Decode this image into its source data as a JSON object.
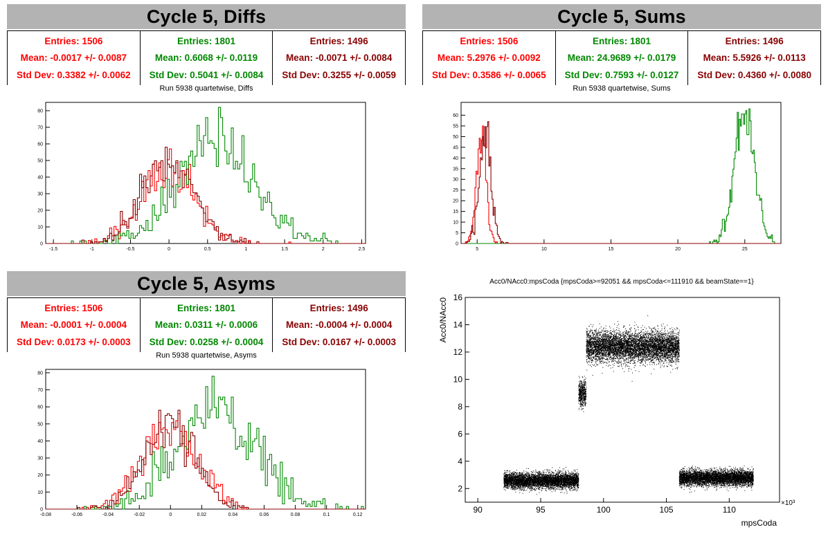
{
  "colors": {
    "red": "#ff0000",
    "green": "#008800",
    "darkred": "#880000",
    "banner": "#b3b3b3"
  },
  "panels": {
    "diffs": {
      "banner": "Cycle 5, Diffs",
      "stats": [
        {
          "entries": "Entries: 1506",
          "mean": "Mean: -0.0017 +/- 0.0087",
          "stddev": "Std Dev: 0.3382 +/- 0.0062"
        },
        {
          "entries": "Entries: 1801",
          "mean": "Mean: 0.6068 +/- 0.0119",
          "stddev": "Std Dev: 0.5041 +/- 0.0084"
        },
        {
          "entries": "Entries: 1496",
          "mean": "Mean: -0.0071 +/- 0.0084",
          "stddev": "Std Dev: 0.3255 +/- 0.0059"
        }
      ],
      "title": "Run 5938 quartetwise, Diffs"
    },
    "sums": {
      "banner": "Cycle 5, Sums",
      "stats": [
        {
          "entries": "Entries: 1506",
          "mean": "Mean: 5.2976 +/- 0.0092",
          "stddev": "Std Dev: 0.3586 +/- 0.0065"
        },
        {
          "entries": "Entries: 1801",
          "mean": "Mean: 24.9689 +/- 0.0179",
          "stddev": "Std Dev: 0.7593 +/- 0.0127"
        },
        {
          "entries": "Entries: 1496",
          "mean": "Mean: 5.5926 +/- 0.0113",
          "stddev": "Std Dev: 0.4360 +/- 0.0080"
        }
      ],
      "title": "Run 5938 quartetwise, Sums"
    },
    "asyms": {
      "banner": "Cycle 5, Asyms",
      "stats": [
        {
          "entries": "Entries: 1506",
          "mean": "Mean: -0.0001 +/- 0.0004",
          "stddev": "Std Dev: 0.0173 +/- 0.0003"
        },
        {
          "entries": "Entries: 1801",
          "mean": "Mean: 0.0311 +/- 0.0006",
          "stddev": "Std Dev: 0.0258 +/- 0.0004"
        },
        {
          "entries": "Entries: 1496",
          "mean": "Mean: -0.0004 +/- 0.0004",
          "stddev": "Std Dev: 0.0167 +/- 0.0003"
        }
      ],
      "title": "Run 5938 quartetwise, Asyms"
    },
    "scatter": {
      "title": "Acc0/NAcc0:mpsCoda {mpsCoda>=92051 && mpsCoda<=111910 && beamState==1}"
    }
  },
  "chart_data": [
    {
      "type": "histogram",
      "id": "diffs",
      "title": "Run 5938 quartetwise, Diffs",
      "xlim": [
        -1.6,
        2.55
      ],
      "ylim": [
        0,
        85
      ],
      "xticks": [
        -1.5,
        -1,
        -0.5,
        0,
        0.5,
        1,
        1.5,
        2,
        2.5
      ],
      "xtick_labels": [
        "-1.5",
        "-1",
        "-0.5",
        "0",
        "0.5",
        "1",
        "1.5",
        "2",
        "2.5"
      ],
      "yticks": [
        0,
        10,
        20,
        30,
        40,
        50,
        60,
        70,
        80
      ],
      "ytick_labels": [
        "0",
        "10",
        "20",
        "30",
        "40",
        "50",
        "60",
        "70",
        "80"
      ],
      "series": [
        {
          "color": "red",
          "entries": 1506,
          "mean": -0.0017,
          "std": 0.3382,
          "peak": 57
        },
        {
          "color": "green",
          "entries": 1801,
          "mean": 0.6068,
          "std": 0.5041,
          "peak": 82
        },
        {
          "color": "darkred",
          "entries": 1496,
          "mean": -0.0071,
          "std": 0.3255,
          "peak": 58
        }
      ]
    },
    {
      "type": "histogram",
      "id": "sums",
      "title": "Run 5938 quartetwise, Sums",
      "xlim": [
        3.8,
        27.7
      ],
      "ylim": [
        0,
        66
      ],
      "xticks": [
        5,
        10,
        15,
        20,
        25
      ],
      "xtick_labels": [
        "5",
        "10",
        "15",
        "20",
        "25"
      ],
      "yticks": [
        0,
        5,
        10,
        15,
        20,
        25,
        30,
        35,
        40,
        45,
        50,
        55,
        60
      ],
      "ytick_labels": [
        "0",
        "5",
        "10",
        "15",
        "20",
        "25",
        "30",
        "35",
        "40",
        "45",
        "50",
        "55",
        "60"
      ],
      "series": [
        {
          "color": "red",
          "entries": 1506,
          "mean": 5.2976,
          "std": 0.3586,
          "peak": 55
        },
        {
          "color": "green",
          "entries": 1801,
          "mean": 24.9689,
          "std": 0.7593,
          "peak": 63
        },
        {
          "color": "darkred",
          "entries": 1496,
          "mean": 5.5926,
          "std": 0.436,
          "peak": 57
        }
      ]
    },
    {
      "type": "histogram",
      "id": "asyms",
      "title": "Run 5938 quartetwise, Asyms",
      "xlim": [
        -0.08,
        0.125
      ],
      "ylim": [
        0,
        82
      ],
      "xticks": [
        -0.08,
        -0.06,
        -0.04,
        -0.02,
        0,
        0.02,
        0.04,
        0.06,
        0.08,
        0.1,
        0.12
      ],
      "xtick_labels": [
        "-0.08",
        "-0.06",
        "-0.04",
        "-0.02",
        "0",
        "0.02",
        "0.04",
        "0.06",
        "0.08",
        "0.1",
        "0.12"
      ],
      "yticks": [
        0,
        10,
        20,
        30,
        40,
        50,
        60,
        70,
        80
      ],
      "ytick_labels": [
        "0",
        "10",
        "20",
        "30",
        "40",
        "50",
        "60",
        "70",
        "80"
      ],
      "series": [
        {
          "color": "red",
          "entries": 1506,
          "mean": -0.0001,
          "std": 0.0173,
          "peak": 56
        },
        {
          "color": "green",
          "entries": 1801,
          "mean": 0.0311,
          "std": 0.0258,
          "peak": 78
        },
        {
          "color": "darkred",
          "entries": 1496,
          "mean": -0.0004,
          "std": 0.0167,
          "peak": 58
        }
      ]
    },
    {
      "type": "scatter",
      "id": "scatter",
      "title": "Acc0/NAcc0:mpsCoda {mpsCoda>=92051 && mpsCoda<=111910 && beamState==1}",
      "xlabel": "mpsCoda",
      "ylabel": "Acc0/NAcc0",
      "x_exponent_label": "×10³",
      "xlim": [
        89,
        114
      ],
      "ylim": [
        1,
        16
      ],
      "xticks": [
        90,
        95,
        100,
        105,
        110
      ],
      "xtick_labels": [
        "90",
        "95",
        "100",
        "105",
        "110"
      ],
      "yticks": [
        2,
        4,
        6,
        8,
        10,
        12,
        14,
        16
      ],
      "ytick_labels": [
        "2",
        "4",
        "6",
        "8",
        "10",
        "12",
        "14",
        "16"
      ],
      "clusters": [
        {
          "x": [
            92.05,
            98.0
          ],
          "y_center": 2.6,
          "y_spread": 0.35
        },
        {
          "x": [
            98.0,
            98.6
          ],
          "y_center": 9.0,
          "y_spread": 0.6
        },
        {
          "x": [
            98.6,
            106.0
          ],
          "y_center": 12.4,
          "y_spread": 0.7
        },
        {
          "x": [
            106.0,
            111.9
          ],
          "y_center": 2.8,
          "y_spread": 0.35
        }
      ]
    }
  ]
}
